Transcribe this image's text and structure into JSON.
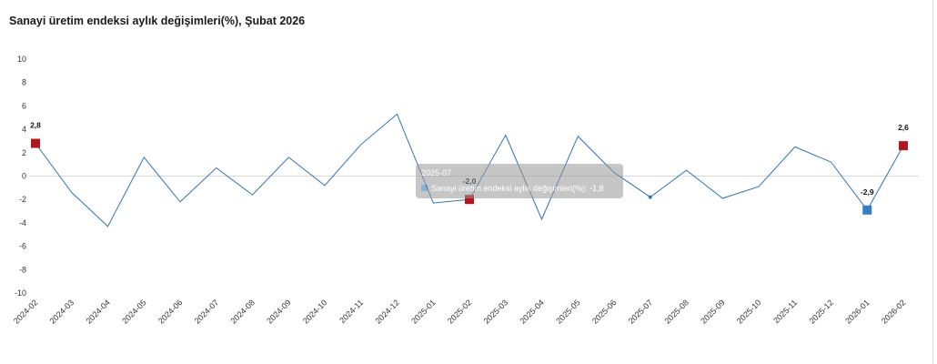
{
  "title": "Sanayi üretim endeksi aylık değişimleri(%), Şubat 2026",
  "colors": {
    "line": "#2e75b6",
    "marker_red": "#b0161c",
    "marker_blue": "#3a7cc2",
    "zero_line": "#d9d9d9",
    "tooltip_bg": "#999999"
  },
  "chart_data": {
    "type": "line",
    "title": "Sanayi üretim endeksi aylık değişimleri(%), Şubat 2026",
    "xlabel": "",
    "ylabel": "",
    "ylim": [
      -10,
      10
    ],
    "yticks": [
      "10",
      "8",
      "6",
      "4",
      "2",
      "0",
      "-2",
      "-4",
      "-6",
      "-8",
      "-10"
    ],
    "grid": false,
    "categories": [
      "2024-02",
      "2024-03",
      "2024-04",
      "2024-05",
      "2024-06",
      "2024-07",
      "2024-08",
      "2024-09",
      "2024-10",
      "2024-11",
      "2024-12",
      "2025-01",
      "2025-02",
      "2025-03",
      "2025-04",
      "2025-05",
      "2025-06",
      "2025-07",
      "2025-08",
      "2025-09",
      "2025-10",
      "2025-11",
      "2025-12",
      "2026-01",
      "2026-02"
    ],
    "series": [
      {
        "values": [
          2.8,
          -1.4,
          -4.3,
          1.6,
          -2.2,
          0.7,
          -1.6,
          1.6,
          -0.8,
          2.7,
          5.3,
          -2.3,
          -2.0,
          3.5,
          -3.7,
          3.4,
          0.3,
          -1.8,
          0.5,
          -1.9,
          -0.9,
          2.5,
          1.2,
          -2.9,
          2.6
        ]
      }
    ],
    "highlighted_points": [
      {
        "category": "2024-02",
        "value": 2.8,
        "label": "2,8",
        "color": "red"
      },
      {
        "category": "2025-02",
        "value": -2.0,
        "label": "-2,0",
        "color": "red"
      },
      {
        "category": "2026-01",
        "value": -2.9,
        "label": "-2,9",
        "color": "blue"
      },
      {
        "category": "2026-02",
        "value": 2.6,
        "label": "2,6",
        "color": "red"
      }
    ],
    "tooltip": {
      "header": "2025-07",
      "body": "Sanayi üretim endeksi aylık değişimleri(%): -1,8"
    }
  }
}
